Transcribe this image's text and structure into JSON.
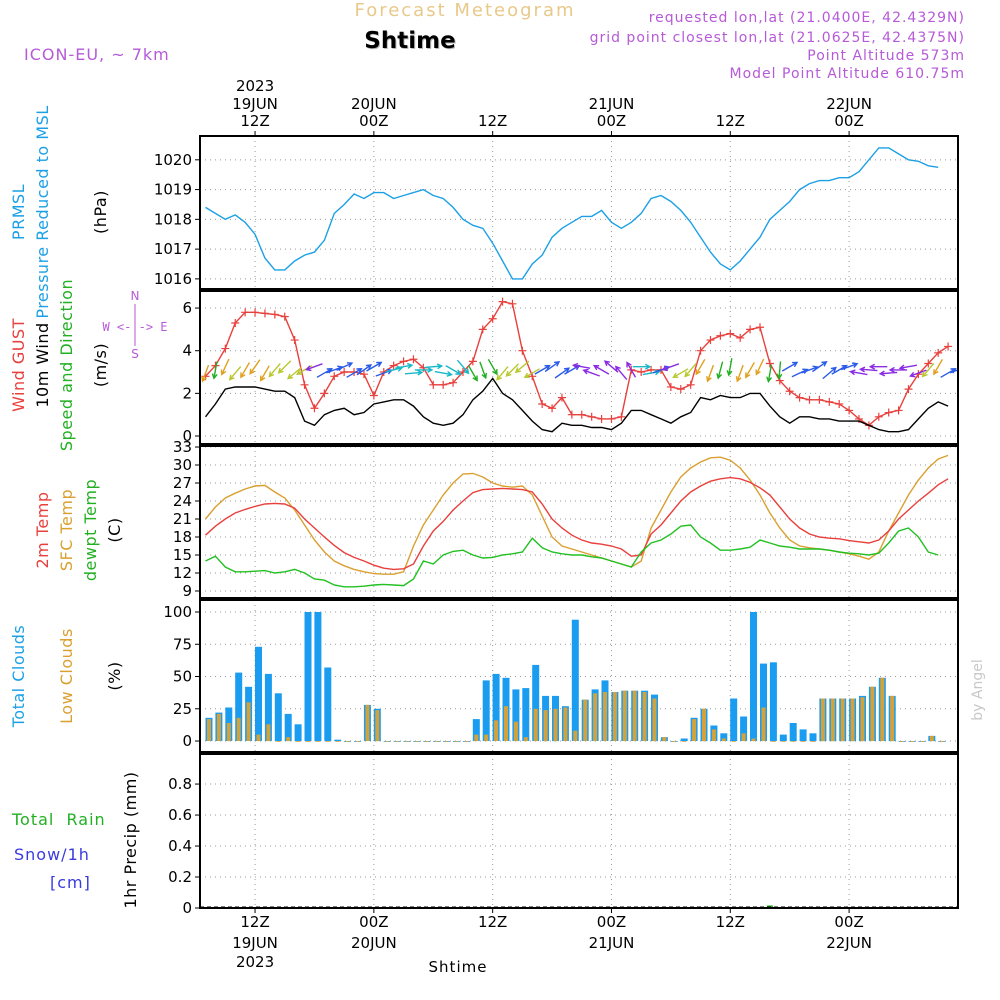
{
  "header": {
    "chart_title": "Forecast Meteogram",
    "location": "Shtime",
    "model": "ICON-EU, ~ 7km",
    "requested": "requested lon,lat (21.0400E, 42.4329N)",
    "grid_point": "grid point closest lon,lat (21.0625E, 42.4375N)",
    "point_altitude": "Point Altitude 573m",
    "model_altitude": "Model Point Altitude 610.75m",
    "credit": "by Angel",
    "xlabel": "Shtime"
  },
  "panel_labels": {
    "pressure": {
      "short": "PRMSL",
      "long": "Pressure Reduced to MSL",
      "unit": "(hPa)"
    },
    "wind": {
      "gust": "Wind GUST",
      "wind10": "10m Wind",
      "speed_dir": "Speed and Direction",
      "unit": "(m/s)",
      "compass_n": "N",
      "compass_we": "W <-|-> E",
      "compass_s": "S"
    },
    "temp": {
      "t2m": "2m Temp",
      "sfc": "SFC Temp",
      "dewpt": "dewpt Temp",
      "unit": "(C)"
    },
    "clouds": {
      "total": "Total Clouds",
      "low": "Low Clouds",
      "unit": "(%)"
    },
    "precip": {
      "rain": "Total  Rain",
      "snow": "Snow/1h",
      "snow_unit": "[cm]",
      "unit_label": "1hr Precip (mm)"
    }
  },
  "colors": {
    "pressure": "#1ba0e6",
    "gust": "#e8403c",
    "wind10": "#000000",
    "green": "#22b022",
    "t2m": "#e8403c",
    "sfc": "#d9a030",
    "dewpt": "#22c022",
    "cloud_total": "#1a9cf0",
    "cloud_low": "#d4a23a",
    "rain": "#22b022",
    "snow": "#3a3ae0",
    "purple": "#b65ad8",
    "title": "#e8c98a"
  },
  "chart_data": {
    "type": "line",
    "title": "Forecast Meteogram",
    "subtitle": "Shtime",
    "x_unit": "hours since 19JUN2023 00Z",
    "xlim": [
      6.44,
      83.0
    ],
    "time_ticks": [
      {
        "hour": 12,
        "time": "12Z",
        "date": "19JUN",
        "year": "2023"
      },
      {
        "hour": 24,
        "time": "00Z",
        "date": "20JUN",
        "year": ""
      },
      {
        "hour": 36,
        "time": "12Z",
        "date": "",
        "year": ""
      },
      {
        "hour": 48,
        "time": "00Z",
        "date": "21JUN",
        "year": ""
      },
      {
        "hour": 60,
        "time": "12Z",
        "date": "",
        "year": ""
      },
      {
        "hour": 72,
        "time": "00Z",
        "date": "22JUN",
        "year": ""
      }
    ],
    "panels": [
      {
        "id": "pressure",
        "ylabel": "Pressure Reduced to MSL (hPa)",
        "ylim": [
          1015.66,
          1020.8
        ],
        "yticks": [
          1016,
          1017,
          1018,
          1019,
          1020
        ],
        "ytick_labels": [
          "1016",
          "1017",
          "1018",
          "1019",
          "1020"
        ],
        "series": [
          {
            "name": "PRMSL",
            "kind": "line",
            "color": "#1ba0e6",
            "start_hour": 7,
            "step_hours": 1,
            "values": [
              1018.4,
              1018.2,
              1018.0,
              1018.15,
              1017.9,
              1017.5,
              1016.7,
              1016.3,
              1016.3,
              1016.6,
              1016.8,
              1016.9,
              1017.3,
              1018.2,
              1018.5,
              1018.85,
              1018.7,
              1018.9,
              1018.9,
              1018.7,
              1018.8,
              1018.9,
              1019.0,
              1018.8,
              1018.7,
              1018.4,
              1018.0,
              1017.8,
              1017.7,
              1017.2,
              1016.6,
              1016.0,
              1016.0,
              1016.5,
              1016.8,
              1017.4,
              1017.7,
              1017.9,
              1018.1,
              1018.1,
              1018.3,
              1017.9,
              1017.7,
              1017.9,
              1018.2,
              1018.7,
              1018.8,
              1018.6,
              1018.3,
              1017.9,
              1017.4,
              1016.9,
              1016.5,
              1016.3,
              1016.6,
              1017.0,
              1017.4,
              1018.0,
              1018.3,
              1018.6,
              1019.0,
              1019.2,
              1019.3,
              1019.3,
              1019.4,
              1019.4,
              1019.6,
              1020.0,
              1020.4,
              1020.4,
              1020.2,
              1020.0,
              1019.95,
              1019.8,
              1019.75
            ]
          }
        ]
      },
      {
        "id": "wind",
        "ylabel": "Wind (m/s)",
        "ylim": [
          -0.375,
          6.8
        ],
        "yticks": [
          0,
          2,
          4,
          6
        ],
        "ytick_labels": [
          "0",
          "2",
          "4",
          "6"
        ],
        "series": [
          {
            "name": "Wind GUST",
            "kind": "line-plus",
            "color": "#e8403c",
            "start_hour": 7,
            "step_hours": 1,
            "values": [
              2.8,
              3.3,
              4.1,
              5.3,
              5.8,
              5.8,
              5.75,
              5.7,
              5.6,
              4.5,
              2.4,
              1.3,
              2.0,
              2.8,
              3.0,
              3.0,
              2.9,
              1.9,
              3.0,
              3.3,
              3.5,
              3.6,
              3.2,
              2.4,
              2.4,
              2.5,
              3.0,
              3.5,
              5.0,
              5.5,
              6.3,
              6.2,
              4.0,
              2.8,
              1.5,
              1.3,
              1.8,
              1.0,
              1.0,
              0.9,
              0.8,
              0.8,
              0.9,
              3.1,
              3.0,
              3.1,
              3.1,
              2.3,
              2.2,
              2.4,
              4.0,
              4.5,
              4.7,
              4.8,
              4.6,
              5.0,
              5.1,
              3.4,
              2.6,
              2.1,
              1.8,
              1.7,
              1.7,
              1.6,
              1.5,
              1.2,
              0.8,
              0.5,
              0.9,
              1.1,
              1.2,
              2.2,
              2.9,
              3.4,
              3.9,
              4.2
            ]
          },
          {
            "name": "10m Wind",
            "kind": "line",
            "color": "#000000",
            "start_hour": 7,
            "step_hours": 1,
            "values": [
              0.9,
              1.5,
              2.2,
              2.3,
              2.3,
              2.3,
              2.2,
              2.1,
              2.1,
              1.8,
              0.7,
              0.5,
              1.0,
              1.2,
              1.3,
              1.0,
              1.1,
              1.5,
              1.6,
              1.7,
              1.7,
              1.4,
              0.9,
              0.6,
              0.5,
              0.6,
              1.0,
              1.7,
              2.1,
              2.7,
              2.0,
              1.7,
              1.2,
              0.7,
              0.3,
              0.2,
              0.6,
              0.5,
              0.5,
              0.4,
              0.4,
              0.3,
              0.6,
              1.2,
              1.2,
              1.0,
              0.8,
              0.6,
              0.9,
              1.1,
              1.8,
              1.7,
              1.9,
              1.8,
              1.8,
              2.0,
              2.0,
              1.4,
              0.9,
              0.6,
              0.9,
              0.9,
              0.8,
              0.8,
              0.7,
              0.7,
              0.7,
              0.5,
              0.3,
              0.2,
              0.2,
              0.3,
              0.8,
              1.3,
              1.6,
              1.4
            ]
          }
        ],
        "wind_direction_from_deg": {
          "start_hour": 7,
          "step_hours": 1,
          "values": [
            20,
            10,
            25,
            40,
            30,
            35,
            30,
            40,
            45,
            50,
            60,
            70,
            240,
            250,
            245,
            240,
            235,
            240,
            250,
            255,
            260,
            265,
            270,
            265,
            280,
            300,
            320,
            330,
            340,
            330,
            40,
            45,
            50,
            60,
            240,
            235,
            235,
            240,
            100,
            110,
            120,
            130,
            140,
            150,
            270,
            260,
            250,
            70,
            60,
            40,
            30,
            20,
            15,
            10,
            20,
            30,
            25,
            10,
            5,
            240,
            245,
            250,
            235,
            230,
            240,
            250,
            100,
            95,
            90,
            85,
            90,
            80,
            70,
            40,
            30,
            240,
            250
          ]
        }
      },
      {
        "id": "temp",
        "ylabel": "Temperature (C)",
        "ylim": [
          7.83,
          33.17
        ],
        "yticks": [
          9,
          12,
          15,
          18,
          21,
          24,
          27,
          30,
          33
        ],
        "ytick_labels": [
          "9",
          "12",
          "15",
          "18",
          "21",
          "24",
          "27",
          "30",
          "33"
        ],
        "series": [
          {
            "name": "SFC Temp",
            "kind": "line",
            "color": "#d9a030",
            "start_hour": 7,
            "step_hours": 1,
            "values": [
              21.0,
              23.0,
              24.5,
              25.3,
              26.0,
              26.5,
              26.6,
              25.5,
              24.5,
              22.5,
              20.0,
              17.5,
              15.5,
              14.0,
              13.2,
              12.6,
              12.2,
              11.9,
              11.8,
              11.8,
              12.2,
              16.5,
              20.0,
              22.5,
              25.0,
              27.0,
              28.5,
              28.6,
              28.0,
              27.0,
              26.5,
              26.3,
              26.5,
              25.0,
              21.5,
              18.0,
              16.5,
              16.0,
              15.5,
              15.0,
              14.5,
              14.0,
              13.5,
              13.0,
              14.0,
              19.5,
              22.5,
              25.5,
              28.0,
              29.5,
              30.5,
              31.2,
              31.3,
              30.8,
              29.5,
              27.5,
              25.0,
              22.0,
              19.5,
              17.5,
              16.5,
              16.2,
              16.0,
              15.8,
              15.5,
              15.2,
              14.8,
              14.3,
              15.5,
              19.0,
              22.0,
              25.0,
              27.5,
              29.5,
              31.0,
              31.6
            ]
          },
          {
            "name": "2m Temp",
            "kind": "line",
            "color": "#e8403c",
            "start_hour": 7,
            "step_hours": 1,
            "values": [
              18.3,
              19.8,
              21.0,
              22.0,
              22.6,
              23.1,
              23.5,
              23.6,
              23.5,
              22.8,
              21.0,
              19.5,
              18.0,
              16.6,
              15.4,
              14.6,
              14.0,
              13.3,
              12.8,
              12.6,
              12.7,
              13.5,
              16.5,
              19.0,
              20.6,
              22.5,
              24.0,
              25.4,
              25.9,
              26.0,
              26.1,
              26.0,
              25.9,
              25.5,
              23.5,
              21.0,
              19.5,
              18.3,
              17.5,
              17.0,
              16.8,
              16.5,
              16.0,
              14.8,
              15.0,
              18.5,
              20.0,
              22.0,
              24.0,
              25.5,
              26.5,
              27.3,
              27.7,
              27.9,
              27.7,
              27.1,
              26.2,
              25.0,
              23.0,
              21.0,
              19.5,
              18.5,
              18.0,
              17.8,
              17.7,
              17.4,
              17.2,
              17.0,
              17.5,
              19.0,
              21.0,
              22.5,
              24.0,
              25.3,
              26.7,
              27.7
            ]
          },
          {
            "name": "dewpt Temp",
            "kind": "line",
            "color": "#22c022",
            "start_hour": 7,
            "step_hours": 1,
            "values": [
              14.0,
              14.8,
              13.0,
              12.2,
              12.2,
              12.3,
              12.4,
              12.0,
              12.2,
              12.6,
              12.0,
              11.0,
              10.8,
              10.0,
              9.7,
              9.7,
              9.8,
              10.0,
              10.1,
              10.0,
              9.9,
              11.0,
              14.0,
              13.5,
              15.0,
              15.6,
              15.8,
              15.0,
              14.5,
              14.6,
              15.0,
              15.2,
              15.5,
              17.8,
              16.2,
              15.5,
              15.2,
              15.0,
              15.0,
              14.7,
              14.5,
              14.0,
              13.5,
              13.0,
              15.5,
              17.0,
              17.5,
              18.5,
              19.8,
              20.0,
              18.0,
              17.0,
              15.8,
              15.8,
              16.0,
              16.3,
              17.5,
              17.0,
              16.5,
              16.3,
              16.0,
              16.0,
              16.0,
              15.8,
              15.5,
              15.3,
              15.2,
              15.0,
              15.3,
              17.0,
              19.0,
              19.5,
              18.0,
              15.5,
              15.0
            ]
          }
        ]
      },
      {
        "id": "clouds",
        "ylabel": "Clouds (%)",
        "ylim": [
          -8.5,
          109.3
        ],
        "yticks": [
          0,
          25,
          50,
          75,
          100
        ],
        "ytick_labels": [
          "0",
          "25",
          "50",
          "75",
          "100"
        ],
        "series": [
          {
            "name": "Total Clouds",
            "kind": "bar",
            "color": "#1a9cf0",
            "start_hour": 7,
            "step_hours": 1,
            "values": [
              18,
              22,
              26,
              53,
              42,
              73,
              52,
              37,
              21,
              13,
              100,
              100,
              57,
              1,
              0,
              0,
              28,
              25,
              0,
              0,
              0,
              0,
              0,
              0,
              0,
              0,
              0,
              17,
              47,
              52,
              49,
              40,
              41,
              59,
              35,
              35,
              27,
              94,
              32,
              40,
              47,
              38,
              39,
              39,
              39,
              36,
              3,
              0,
              2,
              18,
              25,
              12,
              6,
              33,
              19,
              100,
              60,
              61,
              5,
              14,
              9,
              6,
              33,
              33,
              33,
              33,
              35,
              42,
              49,
              35,
              0,
              0,
              0,
              4,
              0
            ]
          },
          {
            "name": "Low Clouds",
            "kind": "bar",
            "color": "#d4a23a",
            "start_hour": 7,
            "step_hours": 1,
            "values": [
              17,
              21,
              14,
              18,
              30,
              5,
              13,
              0,
              3,
              0,
              0,
              0,
              0,
              0,
              0,
              0,
              28,
              24,
              0,
              0,
              0,
              0,
              0,
              0,
              0,
              0,
              0,
              5,
              5,
              16,
              27,
              15,
              3,
              25,
              24,
              25,
              26,
              8,
              32,
              37,
              38,
              38,
              39,
              39,
              38,
              33,
              3,
              0,
              0,
              17,
              25,
              9,
              2,
              0,
              6,
              2,
              26,
              0,
              0,
              0,
              0,
              0,
              33,
              33,
              33,
              33,
              34,
              42,
              49,
              35,
              0,
              0,
              0,
              4,
              0
            ]
          }
        ]
      },
      {
        "id": "precip",
        "ylabel": "1hr Precip (mm)",
        "ylim": [
          0,
          0.994
        ],
        "yticks": [
          0,
          0.2,
          0.4,
          0.6,
          0.8
        ],
        "ytick_labels": [
          "0",
          "0.2",
          "0.4",
          "0.6",
          "0.8"
        ],
        "series": [
          {
            "name": "Total Rain",
            "kind": "bar",
            "color": "#22b022",
            "points": [
              [
                64,
                0.01
              ]
            ]
          },
          {
            "name": "Snow/1h",
            "kind": "bar",
            "color": "#3a3ae0",
            "points": []
          }
        ]
      }
    ]
  }
}
